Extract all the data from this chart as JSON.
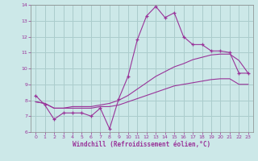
{
  "title": "",
  "xlabel": "Windchill (Refroidissement éolien,°C)",
  "ylabel": "",
  "bg_color": "#cce8e8",
  "grid_color": "#aacccc",
  "line_color": "#993399",
  "xlim": [
    -0.5,
    23.5
  ],
  "ylim": [
    6,
    14
  ],
  "yticks": [
    6,
    7,
    8,
    9,
    10,
    11,
    12,
    13,
    14
  ],
  "xticks": [
    0,
    1,
    2,
    3,
    4,
    5,
    6,
    7,
    8,
    9,
    10,
    11,
    12,
    13,
    14,
    15,
    16,
    17,
    18,
    19,
    20,
    21,
    22,
    23
  ],
  "main_x": [
    0,
    1,
    2,
    3,
    4,
    5,
    6,
    7,
    8,
    9,
    10,
    11,
    12,
    13,
    14,
    15,
    16,
    17,
    18,
    19,
    20,
    21,
    22,
    23
  ],
  "main_y": [
    8.3,
    7.7,
    6.8,
    7.2,
    7.2,
    7.2,
    7.0,
    7.5,
    6.2,
    8.1,
    9.5,
    11.8,
    13.3,
    13.9,
    13.2,
    13.5,
    12.0,
    11.5,
    11.5,
    11.1,
    11.1,
    11.0,
    9.7,
    9.7
  ],
  "trend1_x": [
    0,
    1,
    2,
    3,
    4,
    5,
    6,
    7,
    8,
    9,
    10,
    11,
    12,
    13,
    14,
    15,
    16,
    17,
    18,
    19,
    20,
    21,
    22,
    23
  ],
  "trend1_y": [
    7.9,
    7.8,
    7.5,
    7.5,
    7.6,
    7.6,
    7.6,
    7.7,
    7.8,
    8.0,
    8.3,
    8.7,
    9.1,
    9.5,
    9.8,
    10.1,
    10.3,
    10.55,
    10.7,
    10.85,
    10.9,
    10.9,
    10.5,
    9.7
  ],
  "trend2_x": [
    0,
    1,
    2,
    3,
    4,
    5,
    6,
    7,
    8,
    9,
    10,
    11,
    12,
    13,
    14,
    15,
    16,
    17,
    18,
    19,
    20,
    21,
    22,
    23
  ],
  "trend2_y": [
    7.9,
    7.8,
    7.5,
    7.5,
    7.5,
    7.5,
    7.5,
    7.6,
    7.6,
    7.7,
    7.9,
    8.1,
    8.3,
    8.5,
    8.7,
    8.9,
    9.0,
    9.1,
    9.2,
    9.3,
    9.35,
    9.35,
    9.0,
    9.0
  ]
}
